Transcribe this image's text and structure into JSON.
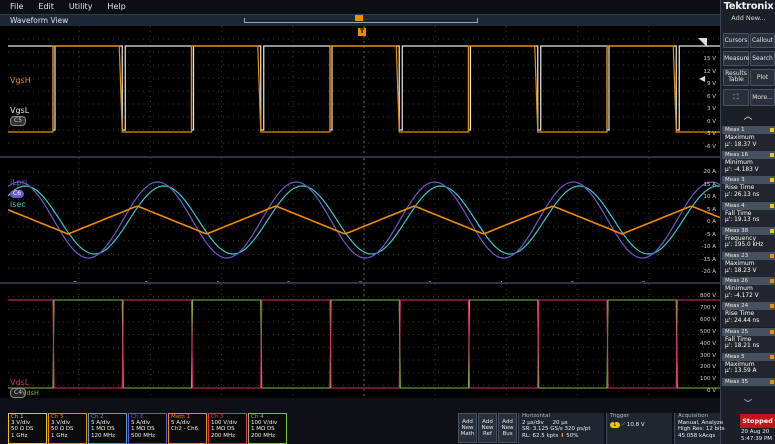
{
  "menu": [
    "File",
    "Edit",
    "Utility",
    "Help"
  ],
  "waveform_view": {
    "title": "Waveform View",
    "trigger_marker": "T"
  },
  "pane1": {
    "labels": {
      "vgsh": "VgsH",
      "vgsl": "VgsL",
      "badge": "C5"
    },
    "y_ticks": [
      "15 V",
      "12 V",
      "9 V",
      "6 V",
      "3 V",
      "0 V",
      "-3 V",
      "-6 V"
    ],
    "colors": {
      "vgsh": "#f08c00",
      "vgsl": "#e8e8e8"
    }
  },
  "pane2": {
    "labels": {
      "ilpri": "iLpri",
      "isec": "isec",
      "badge": "C6"
    },
    "y_ticks": [
      "20 A",
      "15 A",
      "10 A",
      "5 A",
      "0 A",
      "-5 A",
      "-10 A",
      "-15 A",
      "-20 A"
    ],
    "time_ticks": [
      "-8 µs",
      "-6 µs",
      "-4 µs",
      "-2 µs",
      "0 s",
      "2 µs",
      "4 µs",
      "6 µs",
      "8 µs"
    ],
    "colors": {
      "ilpri": "#6a5acd",
      "isec": "#3cc8c8",
      "math": "#f08c00"
    }
  },
  "pane3": {
    "labels": {
      "vdsl": "VdsL",
      "vdsh": "VdsH",
      "badge": "C4"
    },
    "y_ticks": [
      "800 V",
      "700 V",
      "600 V",
      "500 V",
      "400 V",
      "300 V",
      "200 V",
      "100 V",
      "0 V"
    ],
    "colors": {
      "vdsl": "#e0306a",
      "vdsh": "#7fbf3f"
    }
  },
  "sidebar": {
    "brand": "Tektronix",
    "add_new": "Add New...",
    "buttons": {
      "cursors": "Cursors",
      "callout": "Callout",
      "measure": "Measure",
      "search": "Search",
      "results_table_1": "Results",
      "results_table_2": "Table",
      "plot": "Plot",
      "more": "More..."
    },
    "measurements": [
      {
        "id": "Meas 1",
        "type": "Maximum",
        "value": "μ': 18.37 V",
        "color": "#f0c800"
      },
      {
        "id": "Meas 16",
        "type": "Minimum",
        "value": "μ': -4.183 V",
        "color": "#f0c800"
      },
      {
        "id": "Meas 3",
        "type": "Rise Time",
        "value": "μ': 26.13 ns",
        "color": "#f0c800"
      },
      {
        "id": "Meas 4",
        "type": "Fall Time",
        "value": "μ': 19.13 ns",
        "color": "#f0c800"
      },
      {
        "id": "Meas 38",
        "type": "Frequency",
        "value": "μ': 195.0 kHz",
        "color": "#f0c800"
      },
      {
        "id": "Meas 23",
        "type": "Maximum",
        "value": "μ': 18.23 V",
        "color": "#f08c00"
      },
      {
        "id": "Meas 26",
        "type": "Minimum",
        "value": "μ': -4.172 V",
        "color": "#f08c00"
      },
      {
        "id": "Meas 24",
        "type": "Rise Time",
        "value": "μ': 24.44 ns",
        "color": "#f08c00"
      },
      {
        "id": "Meas 25",
        "type": "Fall Time",
        "value": "μ': 18.21 ns",
        "color": "#f08c00"
      },
      {
        "id": "Meas 5",
        "type": "Maximum",
        "value": "μ': 13.59 A",
        "color": "#f08c00"
      },
      {
        "id": "Meas 35",
        "type": "",
        "value": "",
        "color": "#f08c00"
      }
    ]
  },
  "channels": [
    {
      "name": "Ch 1",
      "lines": [
        "3 V/div",
        "50 Ω  DS",
        "1 GHz"
      ],
      "color": "#f0c800"
    },
    {
      "name": "Ch 5",
      "lines": [
        "3 V/div",
        "50 Ω  DS",
        "1 GHz"
      ],
      "color": "#f08c00"
    },
    {
      "name": "Ch 2",
      "lines": [
        "5 A/div",
        "1 MΩ  DS",
        "120 MHz"
      ],
      "color": "#4a9fe8"
    },
    {
      "name": "Ch 6",
      "lines": [
        "5 A/div",
        "1 MΩ  DS",
        "500 MHz"
      ],
      "color": "#6a5acd"
    },
    {
      "name": "Math 1",
      "lines": [
        "5 A/div",
        "Ch2 - Ch6",
        ""
      ],
      "color": "#f08c00"
    },
    {
      "name": "Ch 3",
      "lines": [
        "100 V/div",
        "1 MΩ  DS",
        "200 MHz"
      ],
      "color": "#e0306a"
    },
    {
      "name": "Ch 4",
      "lines": [
        "100 V/div",
        "1 MΩ  DS",
        "200 MHz"
      ],
      "color": "#7fbf3f"
    }
  ],
  "add_buttons": [
    {
      "l1": "Add",
      "l2": "New",
      "l3": "Math"
    },
    {
      "l1": "Add",
      "l2": "New",
      "l3": "Ref"
    },
    {
      "l1": "Add",
      "l2": "New",
      "l3": "Bus"
    }
  ],
  "horizontal": {
    "title": "Horizontal",
    "scale": "2 µs/div",
    "record": "20 µs",
    "sr": "SR: 3.125 GS/s",
    "pt": "320 ps/pt",
    "rl": "RL: 62.5 kpts",
    "pos": "50%"
  },
  "trigger": {
    "title": "Trigger",
    "source": "1",
    "level": "10.8 V"
  },
  "acquisition": {
    "title": "Acquisition",
    "mode": "Manual,",
    "analyze": "Analyze",
    "res": "High Res: 12 bits",
    "acqs": "45.058 kAcqs"
  },
  "status": {
    "state": "Stopped",
    "date": "20 Aug 20",
    "time": "5:47:39 PM"
  }
}
